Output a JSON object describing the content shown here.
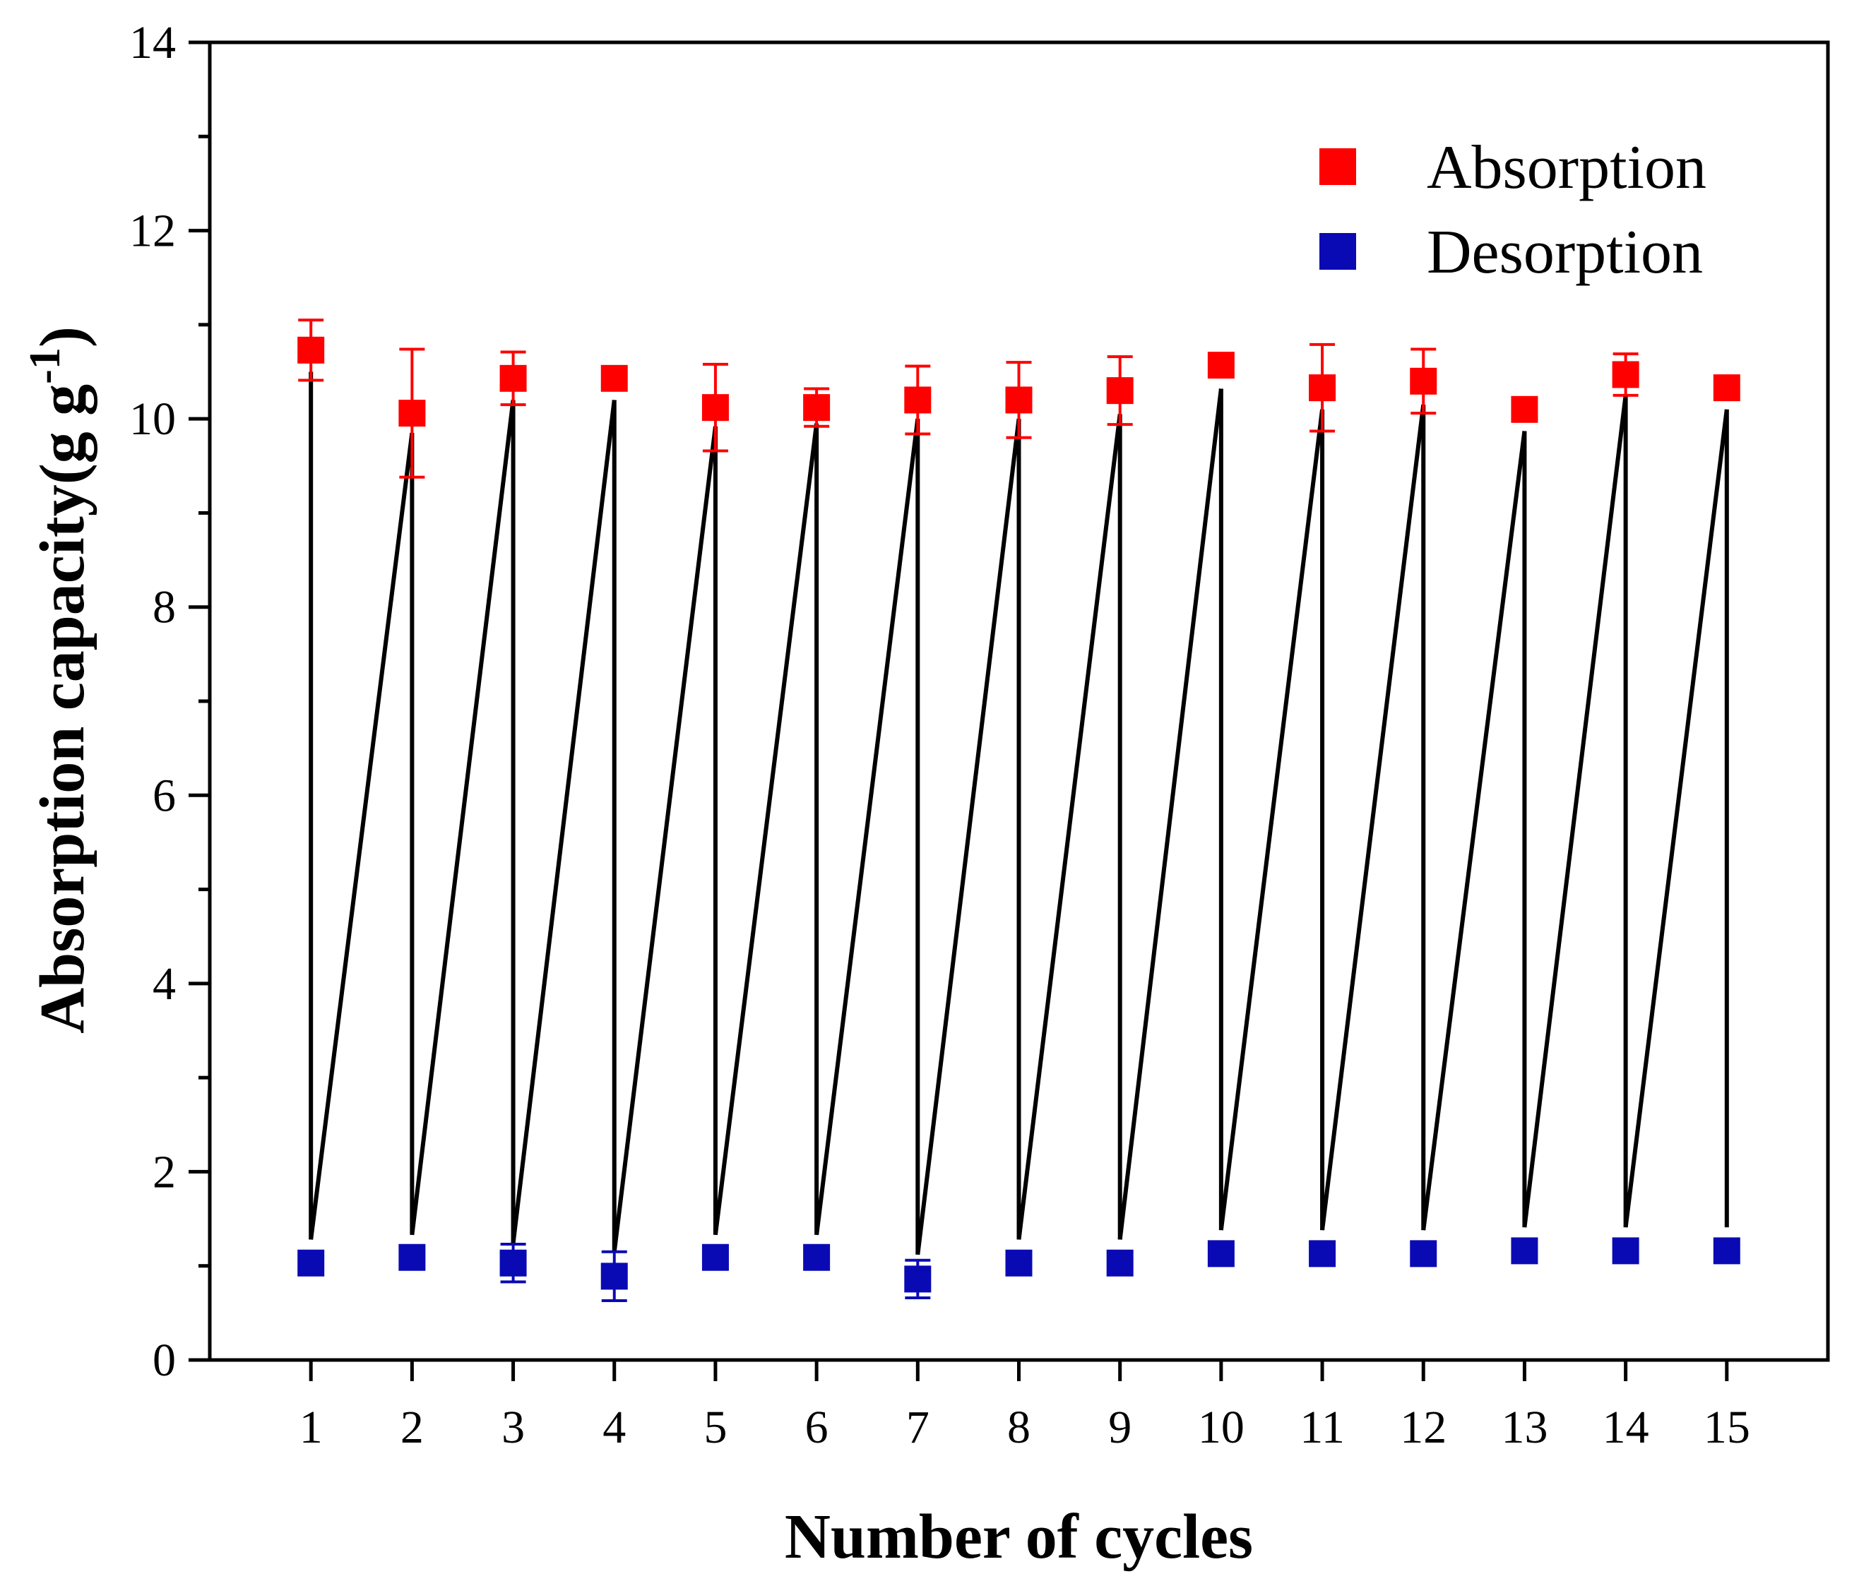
{
  "chart_data": {
    "type": "scatter",
    "title": "",
    "xlabel": "Number of cycles",
    "ylabel": "Absorption capacity(g g",
    "ylabel_superscript": "-1",
    "ylabel_close": ")",
    "xlim": [
      0,
      16
    ],
    "ylim": [
      0,
      14
    ],
    "x_ticks": [
      1,
      2,
      3,
      4,
      5,
      6,
      7,
      8,
      9,
      10,
      11,
      12,
      13,
      14,
      15
    ],
    "x_tick_labels": [
      "1",
      "2",
      "3",
      "4",
      "5",
      "6",
      "7",
      "8",
      "9",
      "10",
      "11",
      "12",
      "13",
      "14",
      "15"
    ],
    "y_ticks": [
      0,
      2,
      4,
      6,
      8,
      10,
      12,
      14
    ],
    "y_tick_labels": [
      "0",
      "2",
      "4",
      "6",
      "8",
      "10",
      "12",
      "14"
    ],
    "y_minor_step": 1,
    "legend_position": "top-right",
    "series": [
      {
        "name": "Absorption",
        "color": "#ff0000",
        "x": [
          1,
          2,
          3,
          4,
          5,
          6,
          7,
          8,
          9,
          10,
          11,
          12,
          13,
          14,
          15
        ],
        "values": [
          10.73,
          10.06,
          10.43,
          10.43,
          10.12,
          10.12,
          10.2,
          10.2,
          10.3,
          10.57,
          10.33,
          10.4,
          10.1,
          10.47,
          10.33
        ],
        "errors": [
          0.32,
          0.68,
          0.28,
          0.05,
          0.46,
          0.2,
          0.36,
          0.4,
          0.36,
          0.05,
          0.46,
          0.34,
          0.0,
          0.22,
          0.0
        ]
      },
      {
        "name": "Desorption",
        "color": "#0a0ab4",
        "x": [
          1,
          2,
          3,
          4,
          5,
          6,
          7,
          8,
          9,
          10,
          11,
          12,
          13,
          14,
          15
        ],
        "values": [
          1.03,
          1.09,
          1.03,
          0.89,
          1.09,
          1.09,
          0.86,
          1.03,
          1.03,
          1.13,
          1.13,
          1.13,
          1.16,
          1.16,
          1.16
        ],
        "errors": [
          0.05,
          0.05,
          0.2,
          0.26,
          0.05,
          0.05,
          0.2,
          0.05,
          0.05,
          0.05,
          0.05,
          0.05,
          0.05,
          0.05,
          0.05
        ]
      }
    ],
    "connector": {
      "color": "#000000",
      "description_values": {
        "top": [
          10.5,
          9.85,
          10.2,
          10.2,
          9.92,
          9.95,
          10.0,
          10.0,
          10.05,
          10.32,
          10.1,
          10.15,
          9.87,
          10.25,
          10.1
        ],
        "bottom": [
          1.28,
          1.33,
          1.24,
          1.15,
          1.33,
          1.33,
          1.12,
          1.28,
          1.28,
          1.38,
          1.38,
          1.38,
          1.41,
          1.41,
          1.41
        ]
      }
    }
  }
}
